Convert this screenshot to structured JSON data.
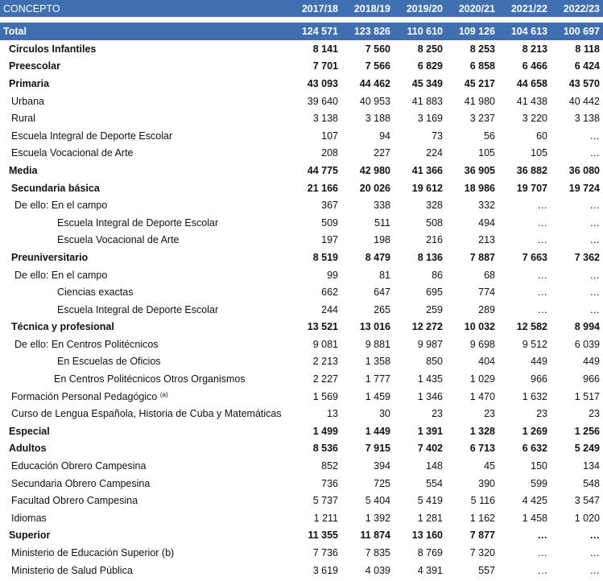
{
  "header": {
    "concepto": "CONCEPTO",
    "years": [
      "2017/18",
      "2018/19",
      "2019/20",
      "2020/21",
      "2021/22",
      "2022/23"
    ]
  },
  "total": {
    "label": "Total",
    "values": [
      "124 571",
      "123 826",
      "110 610",
      "109 126",
      "104 613",
      "100 697"
    ]
  },
  "rows": [
    {
      "label": "Circulos Infantiles",
      "bold": true,
      "indent": 1,
      "values": [
        "8 141",
        "7 560",
        "8 250",
        "8 253",
        "8 213",
        "8 118"
      ]
    },
    {
      "label": "Preescolar",
      "bold": true,
      "indent": 1,
      "values": [
        "7 701",
        "7 566",
        "6 829",
        "6 858",
        "6 466",
        "6 424"
      ]
    },
    {
      "label": "Primaria",
      "bold": true,
      "indent": 1,
      "values": [
        "43 093",
        "44 462",
        "45 349",
        "45 217",
        "44 658",
        "43 570"
      ]
    },
    {
      "label": "Urbana",
      "bold": false,
      "indent": 2,
      "values": [
        "39 640",
        "40 953",
        "41 883",
        "41 980",
        "41 438",
        "40 442"
      ]
    },
    {
      "label": "Rural",
      "bold": false,
      "indent": 2,
      "values": [
        "3 138",
        "3 188",
        "3 169",
        "3 237",
        "3 220",
        "3 138"
      ]
    },
    {
      "label": "Escuela Integral de Deporte Escolar",
      "bold": false,
      "indent": 2,
      "values": [
        "107",
        "94",
        "73",
        "56",
        "60",
        "…"
      ]
    },
    {
      "label": "Escuela Vocacional de Arte",
      "bold": false,
      "indent": 2,
      "values": [
        "208",
        "227",
        "224",
        "105",
        "105",
        "…"
      ]
    },
    {
      "label": "Media",
      "bold": true,
      "indent": 1,
      "values": [
        "44 775",
        "42 980",
        "41 366",
        "36 905",
        "36 882",
        "36 080"
      ]
    },
    {
      "label": "Secundaria básica",
      "bold": true,
      "indent": 2,
      "values": [
        "21 166",
        "20 026",
        "19 612",
        "18 986",
        "19 707",
        "19 724"
      ]
    },
    {
      "label": "De ello: En el campo",
      "bold": false,
      "indent": 3,
      "values": [
        "367",
        "338",
        "328",
        "332",
        "…",
        "…"
      ]
    },
    {
      "label": "Escuela Integral de Deporte Escolar",
      "bold": false,
      "indent": 4,
      "values": [
        "509",
        "511",
        "508",
        "494",
        "…",
        "…"
      ]
    },
    {
      "label": "Escuela Vocacional de Arte",
      "bold": false,
      "indent": 4,
      "values": [
        "197",
        "198",
        "216",
        "213",
        "…",
        "…"
      ]
    },
    {
      "label": "Preuniversitario",
      "bold": true,
      "indent": 2,
      "values": [
        "8 519",
        "8 479",
        "8 136",
        "7 887",
        "7 663",
        "7 362"
      ]
    },
    {
      "label": "De ello: En el campo",
      "bold": false,
      "indent": 3,
      "values": [
        "99",
        "81",
        "86",
        "68",
        "…",
        "…"
      ]
    },
    {
      "label": "Ciencias exactas",
      "bold": false,
      "indent": 4,
      "values": [
        "662",
        "647",
        "695",
        "774",
        "…",
        "…"
      ]
    },
    {
      "label": "Escuela Integral de Deporte Escolar",
      "bold": false,
      "indent": 4,
      "values": [
        "244",
        "265",
        "259",
        "289",
        "…",
        "…"
      ]
    },
    {
      "label": "Técnica y profesional",
      "bold": true,
      "indent": 2,
      "values": [
        "13 521",
        "13 016",
        "12 272",
        "10 032",
        "12 582",
        "8 994"
      ]
    },
    {
      "label": "De ello: En Centros Politécnicos",
      "bold": false,
      "indent": 3,
      "values": [
        "9 081",
        "9 881",
        "9 987",
        "9 698",
        "9 512",
        "6 039"
      ]
    },
    {
      "label": "En Escuelas de Oficios",
      "bold": false,
      "indent": 4,
      "values": [
        "2 213",
        "1 358",
        "850",
        "404",
        "449",
        "449"
      ]
    },
    {
      "label": "En  Centros Politécnicos Otros Organismos",
      "bold": false,
      "indent": 5,
      "values": [
        "2 227",
        "1 777",
        "1 435",
        "1 029",
        "966",
        "966"
      ]
    },
    {
      "label": "Formación Personal Pedagógico",
      "sup": "(a)",
      "bold": false,
      "indent": 2,
      "values": [
        "1 569",
        "1 459",
        "1 346",
        "1 470",
        "1 632",
        "1 517"
      ]
    },
    {
      "label": "Curso de Lengua Española, Historia de Cuba y Matemáticas",
      "bold": false,
      "indent": 2,
      "values": [
        "13",
        "30",
        "23",
        "23",
        "23",
        "23"
      ]
    },
    {
      "label": "Especial",
      "bold": true,
      "indent": 1,
      "values": [
        "1 499",
        "1 449",
        "1 391",
        "1 328",
        "1 269",
        "1 256"
      ]
    },
    {
      "label": "Adultos",
      "bold": true,
      "indent": 1,
      "values": [
        "8 536",
        "7 915",
        "7 402",
        "6 713",
        "6 632",
        "5 249"
      ]
    },
    {
      "label": "Educación Obrero Campesina",
      "bold": false,
      "indent": 2,
      "values": [
        "852",
        "394",
        "148",
        "45",
        "150",
        "134"
      ]
    },
    {
      "label": "Secundaria Obrero Campesina",
      "bold": false,
      "indent": 2,
      "values": [
        "736",
        "725",
        "554",
        "390",
        "599",
        "548"
      ]
    },
    {
      "label": "Facultad  Obrero Campesina",
      "bold": false,
      "indent": 2,
      "values": [
        "5 737",
        "5 404",
        "5 419",
        "5 116",
        "4 425",
        "3 547"
      ]
    },
    {
      "label": "Idiomas",
      "bold": false,
      "indent": 2,
      "values": [
        "1 211",
        "1 392",
        "1 281",
        "1 162",
        "1 458",
        "1 020"
      ]
    },
    {
      "label": "Superior",
      "bold": true,
      "indent": 1,
      "values": [
        "11 355",
        "11 874",
        "13 160",
        "7 877",
        "…",
        "…"
      ]
    },
    {
      "label": "Ministerio de Educación Superior (b)",
      "bold": false,
      "indent": 2,
      "values": [
        "7 736",
        "7 835",
        "8 769",
        "7 320",
        "…",
        "…"
      ]
    },
    {
      "label": "Ministerio de Salud Pública",
      "bold": false,
      "indent": 2,
      "values": [
        "3 619",
        "4 039",
        "4 391",
        "557",
        "…",
        "…"
      ]
    }
  ]
}
